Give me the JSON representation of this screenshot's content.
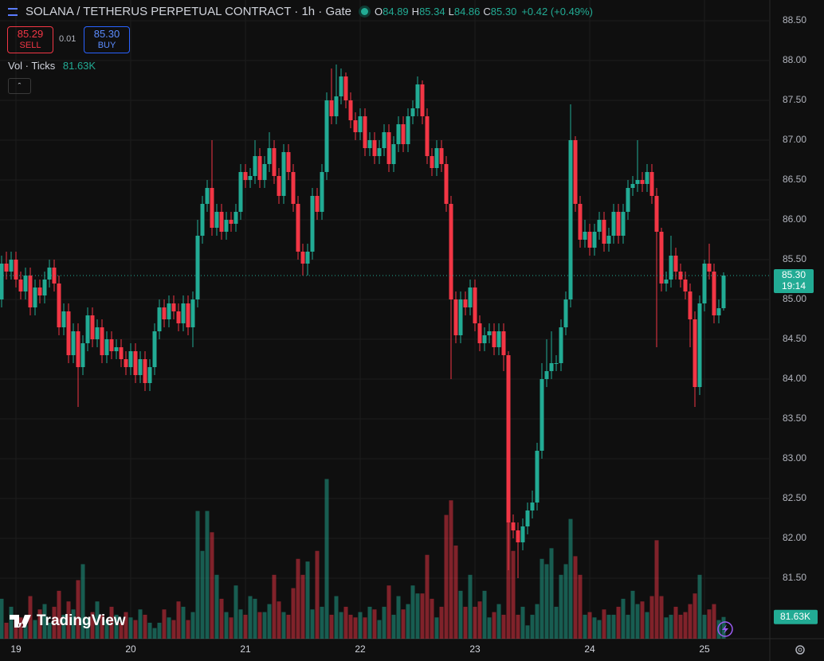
{
  "header": {
    "symbol_title": "SOLANA / TETHERUS PERPETUAL CONTRACT · 1h · Gate",
    "ohlc": [
      {
        "key": "O",
        "value": "84.89"
      },
      {
        "key": "H",
        "value": "85.34"
      },
      {
        "key": "L",
        "value": "84.86"
      },
      {
        "key": "C",
        "value": "85.30"
      }
    ],
    "change": "+0.42 (+0.49%)",
    "sell_price": "85.29",
    "sell_label": "SELL",
    "spread": "0.01",
    "buy_price": "85.30",
    "buy_label": "BUY",
    "volume_indicator": "Vol · Ticks",
    "volume_value": "81.63K"
  },
  "branding": "TradingView",
  "chart_data": {
    "type": "candlestick",
    "up_color": "#22ab94",
    "down_color": "#f23645",
    "last_price_label": "85.30",
    "countdown": "19:14",
    "ylim": [
      80.74,
      88.76
    ],
    "yticks": [
      {
        "value": 88.5,
        "label": "88.50"
      },
      {
        "value": 88,
        "label": "88.00"
      },
      {
        "value": 87.5,
        "label": "87.50"
      },
      {
        "value": 87,
        "label": "87.00"
      },
      {
        "value": 86.5,
        "label": "86.50"
      },
      {
        "value": 86,
        "label": "86.00"
      },
      {
        "value": 85.5,
        "label": "85.50"
      },
      {
        "value": 85,
        "label": "85.00"
      },
      {
        "value": 84.5,
        "label": "84.50"
      },
      {
        "value": 84,
        "label": "84.00"
      },
      {
        "value": 83.5,
        "label": "83.50"
      },
      {
        "value": 83,
        "label": "83.00"
      },
      {
        "value": 82.5,
        "label": "82.50"
      },
      {
        "value": 82,
        "label": "82.00"
      },
      {
        "value": 81.5,
        "label": "81.50"
      }
    ],
    "volume_ylim": [
      0,
      2400
    ],
    "categories": [
      null,
      null,
      null,
      "19",
      null,
      null,
      null,
      null,
      null,
      null,
      null,
      null,
      null,
      null,
      null,
      null,
      null,
      null,
      null,
      null,
      null,
      null,
      null,
      null,
      null,
      null,
      null,
      "20",
      null,
      null,
      null,
      null,
      null,
      null,
      null,
      null,
      null,
      null,
      null,
      null,
      null,
      null,
      null,
      null,
      null,
      null,
      null,
      null,
      null,
      null,
      null,
      "21",
      null,
      null,
      null,
      null,
      null,
      null,
      null,
      null,
      null,
      null,
      null,
      null,
      null,
      null,
      null,
      null,
      null,
      null,
      null,
      null,
      null,
      null,
      null,
      "22",
      null,
      null,
      null,
      null,
      null,
      null,
      null,
      null,
      null,
      null,
      null,
      null,
      null,
      null,
      null,
      null,
      null,
      null,
      null,
      null,
      null,
      null,
      null,
      "23",
      null,
      null,
      null,
      null,
      null,
      null,
      null,
      null,
      null,
      null,
      null,
      null,
      null,
      null,
      null,
      null,
      null,
      null,
      null,
      null,
      null,
      null,
      null,
      "24",
      null,
      null,
      null,
      null,
      null,
      null,
      null,
      null,
      null,
      null,
      null,
      null,
      null,
      null,
      null,
      null,
      null,
      null,
      null,
      null,
      null,
      null,
      null,
      "25",
      null,
      null,
      null,
      null
    ],
    "open": [
      85.0,
      85.45,
      85.35,
      85.5,
      85.25,
      85.1,
      85.3,
      84.9,
      85.15,
      85.05,
      85.25,
      85.4,
      85.2,
      84.65,
      84.85,
      84.3,
      84.6,
      84.15,
      84.45,
      84.8,
      84.5,
      84.65,
      84.3,
      84.5,
      84.35,
      84.4,
      84.25,
      84.15,
      84.35,
      84.05,
      84.25,
      83.95,
      84.15,
      84.6,
      84.9,
      84.75,
      84.95,
      84.85,
      84.7,
      84.95,
      84.65,
      85.0,
      85.8,
      86.2,
      86.4,
      85.9,
      86.1,
      85.85,
      86.0,
      85.95,
      86.1,
      86.6,
      86.5,
      86.55,
      86.8,
      86.5,
      86.7,
      86.9,
      86.55,
      86.3,
      86.85,
      86.6,
      86.2,
      85.6,
      85.45,
      85.6,
      86.3,
      86.1,
      86.6,
      87.5,
      87.3,
      87.55,
      87.8,
      87.5,
      87.25,
      87.1,
      87.3,
      86.9,
      87.0,
      86.8,
      86.9,
      87.1,
      86.7,
      86.95,
      87.2,
      86.95,
      87.3,
      87.4,
      87.7,
      87.3,
      86.8,
      86.65,
      86.9,
      86.7,
      86.2,
      85.0,
      84.55,
      85.0,
      84.9,
      85.15,
      84.7,
      84.45,
      84.55,
      84.6,
      84.4,
      84.6,
      84.3,
      82.2,
      82.1,
      81.95,
      82.15,
      82.35,
      82.45,
      83.1,
      84.0,
      84.1,
      84.2,
      84.2,
      84.65,
      85.0,
      87.0,
      86.2,
      85.75,
      85.85,
      85.65,
      85.85,
      86.0,
      85.7,
      85.8,
      86.1,
      85.8,
      86.1,
      86.4,
      86.45,
      86.5,
      86.45,
      86.6,
      86.3,
      85.85,
      85.2,
      85.25,
      85.55,
      85.35,
      85.25,
      85.1,
      84.75,
      83.9,
      84.95,
      85.45,
      85.35,
      84.8,
      84.89
    ],
    "high": [
      85.55,
      85.6,
      85.6,
      85.6,
      85.35,
      85.4,
      85.4,
      85.25,
      85.25,
      85.35,
      85.5,
      85.5,
      85.3,
      84.95,
      84.95,
      84.7,
      84.7,
      84.55,
      84.9,
      84.9,
      84.75,
      84.75,
      84.6,
      84.6,
      84.5,
      84.5,
      84.35,
      84.45,
      84.45,
      84.35,
      84.35,
      84.25,
      84.7,
      85.0,
      85.0,
      85.05,
      85.05,
      84.95,
      85.05,
      85.05,
      85.1,
      86.0,
      86.3,
      86.5,
      87.0,
      86.2,
      86.2,
      86.1,
      86.1,
      86.2,
      86.7,
      86.7,
      86.65,
      87.0,
      86.9,
      86.8,
      87.1,
      87.0,
      86.65,
      86.95,
      86.95,
      86.7,
      86.3,
      85.7,
      85.7,
      86.4,
      86.4,
      86.7,
      87.6,
      87.9,
      87.95,
      87.9,
      87.85,
      87.6,
      87.35,
      87.4,
      87.4,
      87.1,
      87.1,
      87.0,
      87.2,
      87.2,
      87.05,
      87.3,
      87.3,
      87.4,
      87.5,
      87.8,
      87.75,
      87.4,
      86.9,
      87.0,
      87.0,
      86.8,
      86.3,
      85.1,
      85.1,
      85.1,
      85.25,
      85.25,
      84.8,
      84.65,
      84.7,
      84.7,
      84.7,
      84.7,
      84.35,
      82.3,
      82.2,
      82.25,
      82.45,
      82.6,
      83.2,
      84.2,
      84.5,
      84.6,
      84.3,
      84.75,
      85.1,
      87.45,
      87.05,
      86.3,
      86.0,
      85.95,
      85.95,
      86.1,
      86.1,
      85.9,
      86.2,
      86.2,
      86.2,
      86.5,
      86.55,
      87.0,
      86.6,
      86.7,
      86.7,
      86.4,
      85.9,
      85.35,
      85.8,
      85.65,
      85.45,
      85.35,
      85.2,
      84.85,
      85.05,
      85.5,
      85.7,
      85.45,
      85.0,
      85.34
    ],
    "low": [
      84.9,
      85.25,
      85.25,
      85.15,
      85.0,
      85.0,
      84.8,
      84.8,
      84.95,
      84.95,
      85.15,
      85.1,
      84.55,
      84.55,
      84.2,
      84.2,
      83.65,
      84.05,
      84.35,
      84.4,
      84.4,
      84.2,
      84.2,
      84.25,
      84.25,
      84.15,
      84.05,
      84.05,
      83.95,
      83.95,
      83.85,
      83.85,
      84.05,
      84.5,
      84.65,
      84.65,
      84.75,
      84.6,
      84.6,
      84.55,
      84.4,
      84.9,
      85.7,
      86.1,
      85.8,
      85.8,
      85.75,
      85.75,
      85.85,
      85.85,
      86.0,
      86.4,
      86.4,
      86.45,
      86.4,
      86.4,
      86.6,
      86.45,
      86.2,
      86.2,
      86.5,
      86.1,
      85.5,
      85.3,
      85.3,
      85.5,
      86.0,
      86.0,
      86.5,
      87.2,
      87.2,
      87.45,
      87.4,
      87.15,
      87.0,
      87.0,
      86.8,
      86.8,
      86.7,
      86.7,
      86.8,
      86.6,
      86.6,
      86.85,
      86.85,
      86.85,
      87.2,
      87.3,
      87.2,
      86.7,
      86.55,
      86.55,
      86.6,
      86.1,
      84.0,
      84.45,
      84.45,
      84.8,
      84.8,
      84.6,
      84.35,
      84.35,
      84.45,
      84.3,
      84.3,
      84.1,
      81.6,
      82.0,
      81.5,
      81.85,
      82.05,
      82.25,
      82.35,
      83.0,
      83.9,
      84.0,
      84.1,
      84.1,
      84.55,
      84.9,
      86.1,
      85.65,
      85.65,
      85.55,
      85.55,
      85.75,
      85.6,
      85.6,
      85.7,
      85.7,
      85.7,
      86.0,
      86.3,
      86.35,
      86.35,
      86.35,
      86.2,
      84.4,
      85.1,
      85.1,
      85.15,
      85.25,
      85.15,
      85.0,
      84.4,
      83.65,
      83.8,
      84.85,
      85.25,
      84.7,
      84.7,
      84.86
    ],
    "close": [
      85.45,
      85.35,
      85.5,
      85.25,
      85.1,
      85.3,
      84.9,
      85.15,
      85.05,
      85.25,
      85.4,
      85.2,
      84.65,
      84.85,
      84.3,
      84.6,
      84.15,
      84.45,
      84.8,
      84.5,
      84.65,
      84.3,
      84.5,
      84.35,
      84.4,
      84.25,
      84.15,
      84.35,
      84.05,
      84.25,
      83.95,
      84.15,
      84.6,
      84.9,
      84.75,
      84.95,
      84.85,
      84.7,
      84.95,
      84.65,
      85.0,
      85.8,
      86.2,
      86.4,
      85.9,
      86.1,
      85.85,
      86.0,
      85.95,
      86.1,
      86.6,
      86.5,
      86.55,
      86.8,
      86.5,
      86.7,
      86.9,
      86.55,
      86.3,
      86.85,
      86.6,
      86.2,
      85.6,
      85.45,
      85.6,
      86.3,
      86.1,
      86.6,
      87.5,
      87.3,
      87.55,
      87.8,
      87.5,
      87.25,
      87.1,
      87.3,
      86.9,
      87.0,
      86.8,
      86.9,
      87.1,
      86.7,
      86.95,
      87.2,
      86.95,
      87.3,
      87.4,
      87.7,
      87.3,
      86.8,
      86.65,
      86.9,
      86.7,
      86.2,
      85.0,
      84.55,
      85.0,
      84.9,
      85.15,
      84.7,
      84.45,
      84.55,
      84.6,
      84.4,
      84.6,
      84.3,
      82.2,
      82.1,
      81.95,
      82.15,
      82.35,
      82.45,
      83.1,
      84.0,
      84.1,
      84.2,
      84.2,
      84.65,
      85.0,
      87.0,
      86.2,
      85.75,
      85.85,
      85.65,
      85.85,
      86.0,
      85.7,
      85.8,
      86.1,
      85.8,
      86.1,
      86.4,
      86.45,
      86.5,
      86.45,
      86.6,
      86.3,
      85.85,
      85.2,
      85.25,
      85.55,
      85.35,
      85.25,
      85.1,
      84.75,
      83.9,
      84.95,
      85.45,
      85.35,
      84.8,
      84.89,
      85.3
    ],
    "volume": [
      150,
      60,
      120,
      90,
      80,
      50,
      160,
      70,
      110,
      130,
      60,
      120,
      180,
      90,
      140,
      110,
      220,
      280,
      80,
      100,
      140,
      90,
      70,
      120,
      90,
      60,
      100,
      80,
      70,
      110,
      90,
      60,
      40,
      60,
      110,
      80,
      70,
      140,
      120,
      70,
      100,
      480,
      330,
      480,
      400,
      240,
      150,
      100,
      80,
      200,
      110,
      90,
      160,
      150,
      100,
      100,
      130,
      240,
      140,
      100,
      90,
      190,
      300,
      240,
      290,
      110,
      330,
      120,
      600,
      90,
      160,
      100,
      120,
      90,
      80,
      100,
      80,
      120,
      110,
      70,
      120,
      200,
      90,
      160,
      110,
      130,
      200,
      170,
      170,
      315,
      150,
      80,
      120,
      465,
      520,
      350,
      180,
      120,
      240,
      120,
      140,
      180,
      80,
      100,
      130,
      90,
      460,
      330,
      90,
      120,
      50,
      90,
      130,
      300,
      280,
      340,
      120,
      240,
      280,
      450,
      310,
      240,
      90,
      100,
      80,
      70,
      110,
      90,
      90,
      120,
      150,
      90,
      180,
      130,
      140,
      100,
      160,
      370,
      160,
      80,
      90,
      120,
      90,
      100,
      130,
      170,
      240,
      90,
      110,
      130,
      70,
      81.63
    ]
  }
}
